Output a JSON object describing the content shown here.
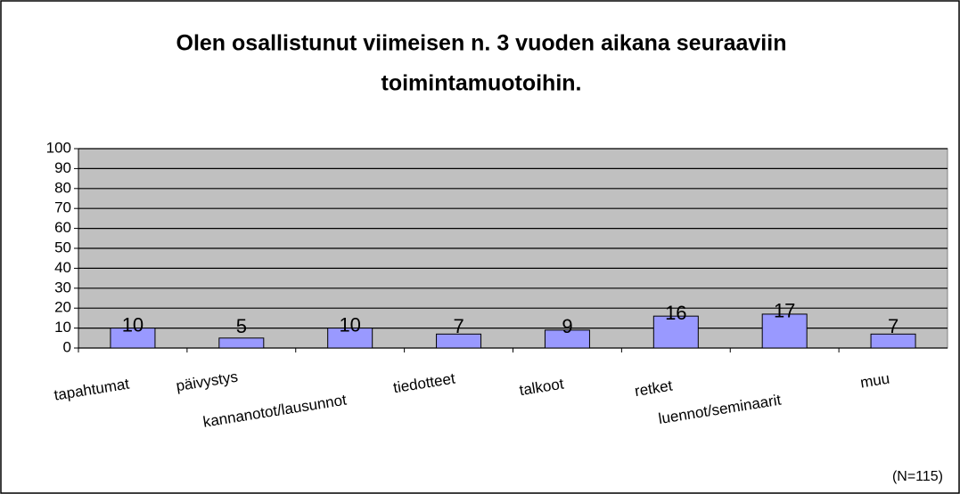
{
  "chart_data": {
    "type": "bar",
    "title": "Olen osallistunut viimeisen n. 3 vuoden aikana seuraaviin toimintamuotoihin.",
    "title_lines": [
      "Olen osallistunut viimeisen n. 3 vuoden aikana seuraaviin",
      "toimintamuotoihin."
    ],
    "categories": [
      "tapahtumat",
      "päivystys",
      "kannanotot/lausunnot",
      "tiedotteet",
      "talkoot",
      "retket",
      "luennot/seminaarit",
      "muu"
    ],
    "values": [
      10,
      5,
      10,
      7,
      9,
      16,
      17,
      7
    ],
    "color": "#9999ff",
    "ylim": [
      0,
      100
    ],
    "yticks": [
      0,
      10,
      20,
      30,
      40,
      50,
      60,
      70,
      80,
      90,
      100
    ],
    "grid": true,
    "annotation": "(N=115)"
  }
}
